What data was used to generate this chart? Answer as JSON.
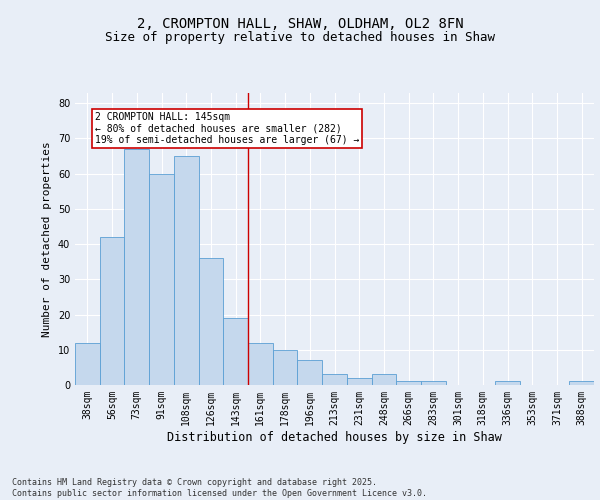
{
  "title1": "2, CROMPTON HALL, SHAW, OLDHAM, OL2 8FN",
  "title2": "Size of property relative to detached houses in Shaw",
  "xlabel": "Distribution of detached houses by size in Shaw",
  "ylabel": "Number of detached properties",
  "categories": [
    "38sqm",
    "56sqm",
    "73sqm",
    "91sqm",
    "108sqm",
    "126sqm",
    "143sqm",
    "161sqm",
    "178sqm",
    "196sqm",
    "213sqm",
    "231sqm",
    "248sqm",
    "266sqm",
    "283sqm",
    "301sqm",
    "318sqm",
    "336sqm",
    "353sqm",
    "371sqm",
    "388sqm"
  ],
  "values": [
    12,
    42,
    67,
    60,
    65,
    36,
    19,
    12,
    10,
    7,
    3,
    2,
    3,
    1,
    1,
    0,
    0,
    1,
    0,
    0,
    1
  ],
  "bar_color": "#c5d8ed",
  "bar_edge_color": "#5a9fd4",
  "vline_color": "#cc0000",
  "vline_x_idx": 6,
  "annotation_text": "2 CROMPTON HALL: 145sqm\n← 80% of detached houses are smaller (282)\n19% of semi-detached houses are larger (67) →",
  "annotation_box_color": "#ffffff",
  "annotation_box_edge_color": "#cc0000",
  "ylim": [
    0,
    83
  ],
  "background_color": "#e8eef7",
  "plot_bg_color": "#e8eef7",
  "footer_text": "Contains HM Land Registry data © Crown copyright and database right 2025.\nContains public sector information licensed under the Open Government Licence v3.0.",
  "grid_color": "#ffffff",
  "title_fontsize": 10,
  "subtitle_fontsize": 9,
  "tick_fontsize": 7,
  "ylabel_fontsize": 8,
  "xlabel_fontsize": 8.5,
  "annot_fontsize": 7,
  "footer_fontsize": 6
}
